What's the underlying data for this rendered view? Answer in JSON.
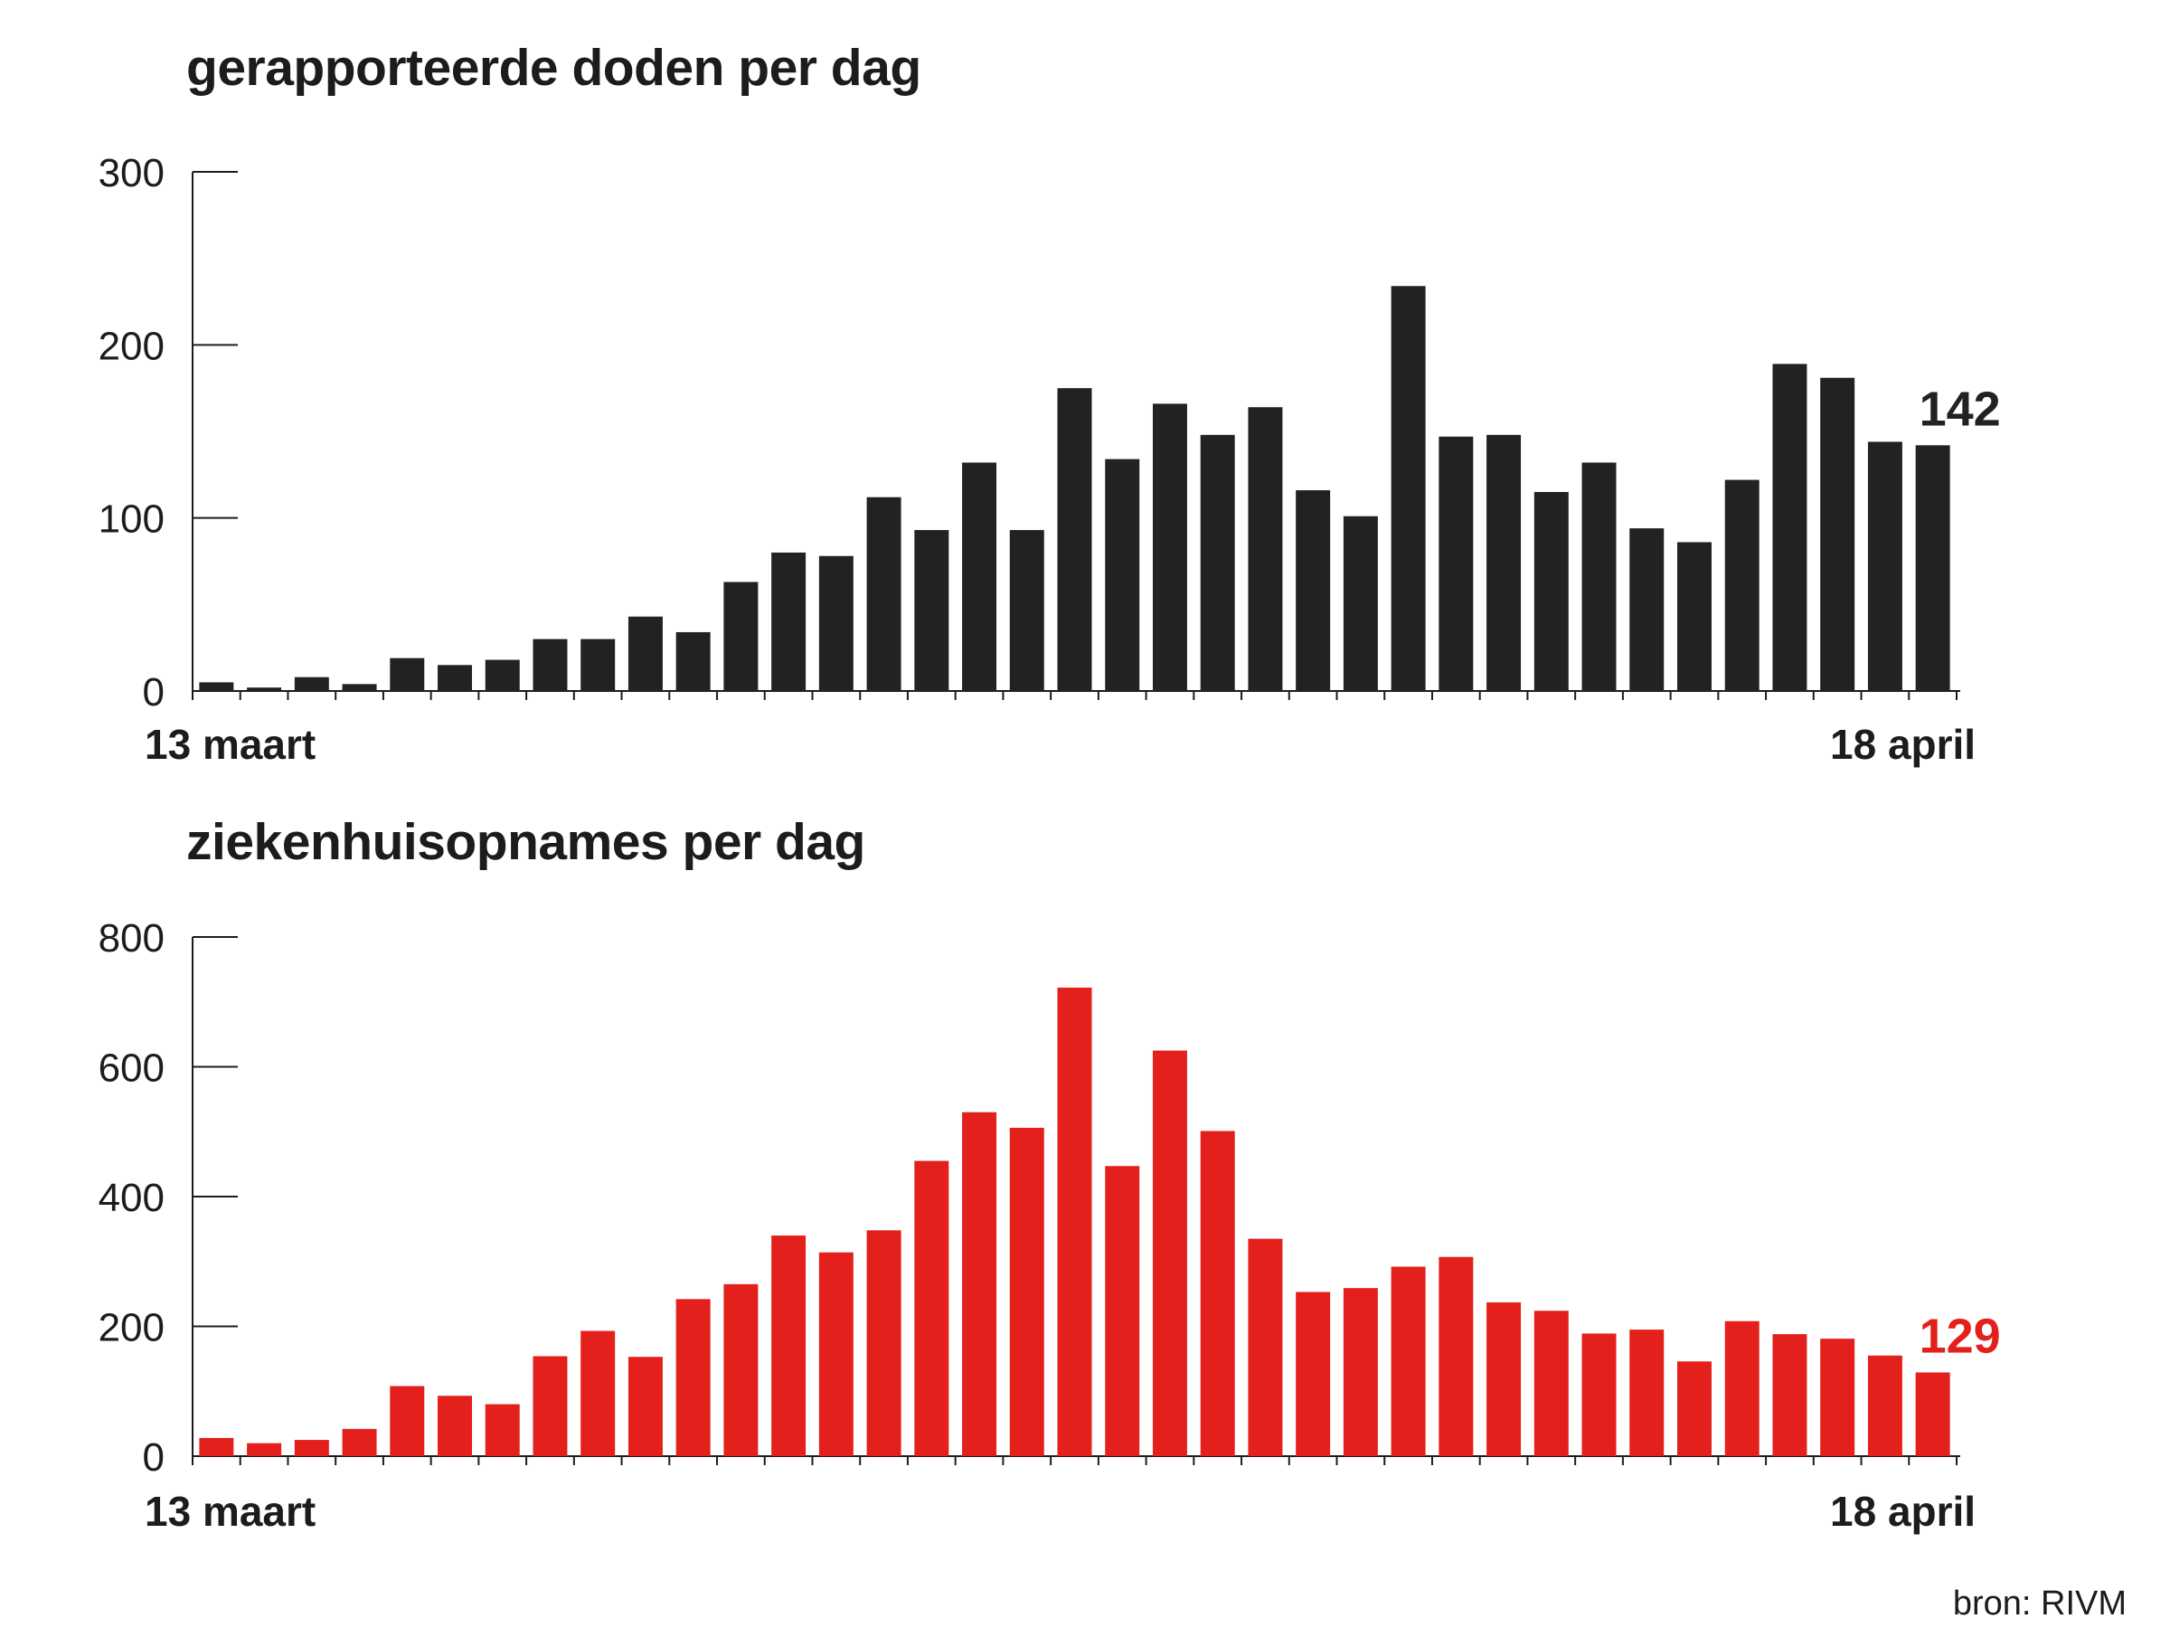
{
  "source": "bron: RIVM",
  "chart_data": [
    {
      "type": "bar",
      "title": "gerapporteerde doden per dag",
      "x_start_label": "13 maart",
      "x_end_label": "18 april",
      "ylim": [
        0,
        300
      ],
      "yticks": [
        "0",
        "100",
        "200",
        "300"
      ],
      "color": "#222222",
      "last_value_label": "142",
      "values": [
        5,
        2,
        8,
        4,
        19,
        15,
        18,
        30,
        30,
        43,
        34,
        63,
        80,
        78,
        112,
        93,
        132,
        93,
        175,
        134,
        166,
        148,
        164,
        116,
        101,
        234,
        147,
        148,
        115,
        132,
        94,
        86,
        122,
        189,
        181,
        144,
        142
      ]
    },
    {
      "type": "bar",
      "title": "ziekenhuisopnames per dag",
      "x_start_label": "13 maart",
      "x_end_label": "18 april",
      "ylim": [
        0,
        800
      ],
      "yticks": [
        "0",
        "200",
        "400",
        "600",
        "800"
      ],
      "color": "#e3201b",
      "last_value_label": "129",
      "values": [
        28,
        20,
        25,
        42,
        108,
        93,
        80,
        154,
        193,
        153,
        242,
        265,
        340,
        314,
        348,
        455,
        530,
        506,
        722,
        447,
        625,
        501,
        335,
        253,
        259,
        292,
        307,
        237,
        224,
        189,
        195,
        146,
        208,
        188,
        181,
        155,
        129
      ]
    }
  ]
}
